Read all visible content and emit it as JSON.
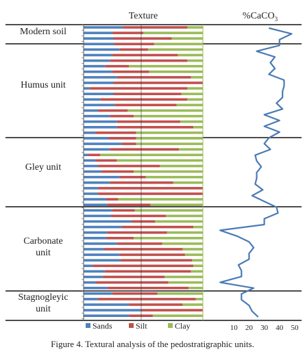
{
  "caption": "Figure 4. Textural analysis of the pedostratigraphic units.",
  "chart_data": [
    {
      "type": "bar",
      "orientation": "horizontal",
      "stacked": true,
      "normalized": true,
      "title": "Texture",
      "ylim_order": "top-to-bottom",
      "series": [
        {
          "name": "Sands",
          "color": "#4f81bd",
          "values": [
            33,
            24,
            25,
            26,
            30,
            24,
            22,
            18,
            24,
            28,
            25,
            5,
            25,
            14,
            26,
            12,
            22,
            28,
            28,
            10,
            21,
            32,
            22,
            4,
            10,
            12,
            15,
            30,
            22,
            12,
            12,
            19,
            20,
            24,
            23,
            40,
            32,
            20,
            19,
            28,
            17,
            30,
            31,
            8,
            18,
            16,
            10,
            20,
            24,
            12,
            38,
            48,
            38
          ]
        },
        {
          "name": "Silt",
          "color": "#c0504d",
          "values": [
            54,
            26,
            49,
            33,
            24,
            55,
            65,
            20,
            31,
            62,
            82,
            82,
            57,
            73,
            52,
            25,
            20,
            53,
            64,
            34,
            23,
            12,
            58,
            10,
            18,
            52,
            27,
            22,
            53,
            92,
            93,
            10,
            36,
            19,
            46,
            20,
            60,
            50,
            23,
            38,
            66,
            55,
            60,
            84,
            72,
            52,
            61,
            68,
            38,
            82,
            45,
            57,
            20
          ]
        },
        {
          "name": "Clay",
          "color": "#9bbb59",
          "values": [
            13,
            50,
            26,
            41,
            46,
            21,
            13,
            62,
            45,
            10,
            -7,
            13,
            18,
            13,
            22,
            63,
            58,
            19,
            8,
            56,
            56,
            56,
            20,
            86,
            72,
            36,
            58,
            48,
            25,
            -4,
            -5,
            71,
            44,
            57,
            31,
            40,
            8,
            30,
            58,
            34,
            17,
            15,
            9,
            8,
            10,
            32,
            29,
            12,
            38,
            6,
            17,
            -5,
            42
          ]
        }
      ],
      "legend": [
        "Sands",
        "Silt",
        "Clay"
      ],
      "legend_position": "bottom"
    },
    {
      "type": "line",
      "orientation": "vertical-profile",
      "title": "%CaCO",
      "title_subscript": "3",
      "xlim": [
        0,
        50
      ],
      "xticks": [
        10,
        20,
        30,
        40,
        50
      ],
      "x": [
        33,
        48,
        40,
        40,
        25,
        37,
        34,
        37,
        33,
        43,
        43,
        42,
        42,
        38,
        42,
        30,
        40,
        30,
        40,
        33,
        30,
        34,
        24,
        25,
        28,
        25,
        25,
        24,
        29,
        22,
        30,
        38,
        39,
        30,
        30,
        1,
        12,
        20,
        23,
        20,
        20,
        13,
        15,
        15,
        1,
        23,
        15,
        15,
        20,
        22,
        26
      ],
      "units": [
        {
          "name": "Modern soil"
        },
        {
          "name": "Humus unit"
        },
        {
          "name": "Gley unit"
        },
        {
          "name": "Carbonate unit"
        },
        {
          "name": "Stagnogleyic unit"
        }
      ]
    }
  ]
}
